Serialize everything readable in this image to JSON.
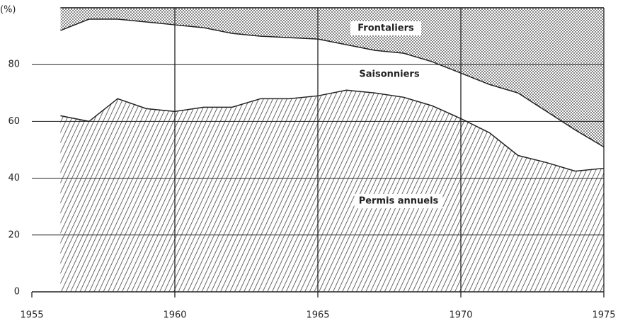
{
  "chart_data": {
    "type": "stacked_area",
    "y_label": "(%)",
    "x": [
      1956,
      1957,
      1958,
      1959,
      1960,
      1961,
      1962,
      1963,
      1964,
      1965,
      1966,
      1967,
      1968,
      1969,
      1970,
      1971,
      1972,
      1973,
      1974,
      1975
    ],
    "series": [
      {
        "name": "Permis annuels",
        "color": "#444444",
        "pattern": "hatch",
        "values": [
          62,
          60,
          68,
          64.5,
          63.5,
          65,
          65,
          68,
          68,
          69,
          71,
          70,
          68.5,
          65.5,
          61,
          56,
          48,
          45.5,
          42.5,
          43.5
        ]
      },
      {
        "name": "Saisonniers",
        "color": "#ffffff",
        "pattern": "none",
        "values": [
          30,
          36,
          28,
          30.5,
          30.5,
          28,
          26,
          22,
          21.5,
          20,
          16,
          15,
          15.5,
          15.5,
          16,
          17,
          22,
          18,
          14.5,
          7.5
        ]
      },
      {
        "name": "Frontaliers",
        "color": "#444444",
        "pattern": "dots",
        "values": [
          8,
          4,
          4,
          5,
          6,
          7,
          9,
          10,
          10.5,
          11,
          13,
          15,
          16,
          19,
          23,
          27,
          30,
          36.5,
          43,
          49
        ]
      }
    ],
    "xlim": [
      1955,
      1975
    ],
    "xticks": [
      1955,
      1960,
      1965,
      1970,
      1975
    ],
    "ylim": [
      0,
      100
    ],
    "yticks": [
      0,
      20,
      40,
      60,
      80
    ],
    "grid": true
  }
}
